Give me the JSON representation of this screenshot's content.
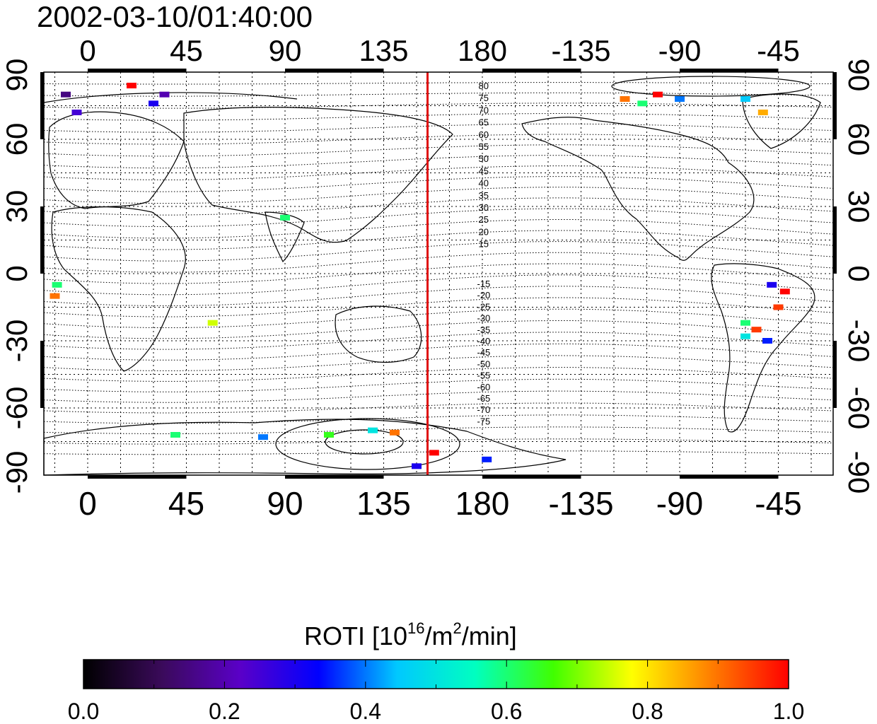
{
  "timestamp": "2002-03-10/01:40:00",
  "map": {
    "lon_ticks": [
      "0",
      "45",
      "90",
      "135",
      "180",
      "-135",
      "-90",
      "-45"
    ],
    "lat_ticks": [
      "90",
      "60",
      "30",
      "0",
      "-30",
      "-60",
      "-90"
    ],
    "meridian_marker": {
      "longitude_deg": 155,
      "color": "#e01010"
    },
    "contour_labels_north": [
      "80",
      "75",
      "70",
      "65",
      "60",
      "55",
      "50",
      "45",
      "40",
      "35",
      "30",
      "25",
      "20",
      "15"
    ],
    "contour_labels_south": [
      "-15",
      "-20",
      "-25",
      "-30",
      "-35",
      "-40",
      "-45",
      "-50",
      "-55",
      "-60",
      "-65",
      "-70",
      "-75"
    ]
  },
  "colorbar": {
    "title_prefix": "ROTI  [10",
    "title_sup1": "16",
    "title_mid": "/m",
    "title_sup2": "2",
    "title_suffix": "/min]",
    "min": 0.0,
    "max": 1.0,
    "tick_labels": [
      "0.0",
      "0.2",
      "0.4",
      "0.6",
      "0.8",
      "1.0"
    ],
    "colormap": [
      "#000000",
      "#3a0a5a",
      "#5a00c8",
      "#0000ff",
      "#00c8ff",
      "#00ffc0",
      "#40ff00",
      "#ffff00",
      "#ff8000",
      "#ff0000"
    ]
  },
  "observations": [
    {
      "lon": -10,
      "lat": 80,
      "roti": 0.15
    },
    {
      "lon": -5,
      "lat": 72,
      "roti": 0.25
    },
    {
      "lon": 20,
      "lat": 84,
      "roti": 1.0
    },
    {
      "lon": 35,
      "lat": 80,
      "roti": 0.2
    },
    {
      "lon": 30,
      "lat": 76,
      "roti": 0.3
    },
    {
      "lon": -15,
      "lat": -10,
      "roti": 0.9
    },
    {
      "lon": -14,
      "lat": -5,
      "roti": 0.6
    },
    {
      "lon": 57,
      "lat": -22,
      "roti": 0.75
    },
    {
      "lon": 90,
      "lat": 25,
      "roti": 0.6
    },
    {
      "lon": 158,
      "lat": -80,
      "roti": 1.0
    },
    {
      "lon": 150,
      "lat": -86,
      "roti": 0.3
    },
    {
      "lon": 182,
      "lat": -83,
      "roti": 0.35
    },
    {
      "lon": -115,
      "lat": 78,
      "roti": 0.9
    },
    {
      "lon": -100,
      "lat": 80,
      "roti": 1.0
    },
    {
      "lon": -107,
      "lat": 76,
      "roti": 0.6
    },
    {
      "lon": -90,
      "lat": 78,
      "roti": 0.4
    },
    {
      "lon": -60,
      "lat": 78,
      "roti": 0.45
    },
    {
      "lon": -52,
      "lat": 72,
      "roti": 0.85
    },
    {
      "lon": -55,
      "lat": -25,
      "roti": 0.95
    },
    {
      "lon": -45,
      "lat": -15,
      "roti": 0.95
    },
    {
      "lon": -42,
      "lat": -8,
      "roti": 1.0
    },
    {
      "lon": -60,
      "lat": -28,
      "roti": 0.5
    },
    {
      "lon": -50,
      "lat": -30,
      "roti": 0.35
    },
    {
      "lon": -48,
      "lat": -5,
      "roti": 0.3
    },
    {
      "lon": 40,
      "lat": -72,
      "roti": 0.6
    },
    {
      "lon": 80,
      "lat": -73,
      "roti": 0.4
    },
    {
      "lon": 110,
      "lat": -72,
      "roti": 0.65
    },
    {
      "lon": 140,
      "lat": -71,
      "roti": 0.9
    },
    {
      "lon": 130,
      "lat": -70,
      "roti": 0.5
    },
    {
      "lon": -60,
      "lat": -22,
      "roti": 0.6
    }
  ]
}
